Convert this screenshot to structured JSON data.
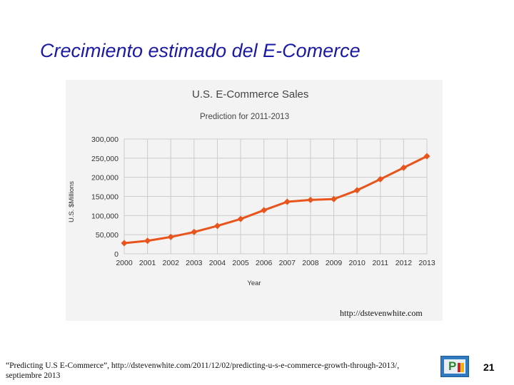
{
  "slide": {
    "title": "Crecimiento estimado del E-Comerce",
    "source_url": "http://dstevenwhite.com",
    "citation": "“Predicting U.S E-Commerce”, http://dstevenwhite.com/2011/12/02/predicting-u-s-e-commerce-growth-through-2013/, septiembre 2013",
    "page_number": "21",
    "logo_icon": "presentation-logo-icon"
  },
  "colors": {
    "title": "#1a1aa6",
    "series": "#e8541c",
    "panel_bg": "#f3f3f3",
    "grid": "#cccccc"
  },
  "chart_data": {
    "type": "line",
    "title": "U.S. E-Commerce Sales",
    "subtitle": "Prediction for 2011-2013",
    "xlabel": "Year",
    "ylabel": "U.S. $Millions",
    "x": [
      "2000",
      "2001",
      "2002",
      "2003",
      "2004",
      "2005",
      "2006",
      "2007",
      "2008",
      "2009",
      "2010",
      "2011",
      "2012",
      "2013"
    ],
    "series": [
      {
        "values": [
          28000,
          34000,
          44000,
          57000,
          73000,
          91000,
          114000,
          136000,
          141000,
          143000,
          166000,
          195000,
          225000,
          255000
        ]
      }
    ],
    "ylim": [
      0,
      300000
    ],
    "yticks": [
      0,
      50000,
      100000,
      150000,
      200000,
      250000,
      300000
    ],
    "ytick_labels": [
      "0",
      "50,000",
      "100,000",
      "150,000",
      "200,000",
      "250,000",
      "300,000"
    ],
    "grid": true,
    "legend": "none"
  }
}
